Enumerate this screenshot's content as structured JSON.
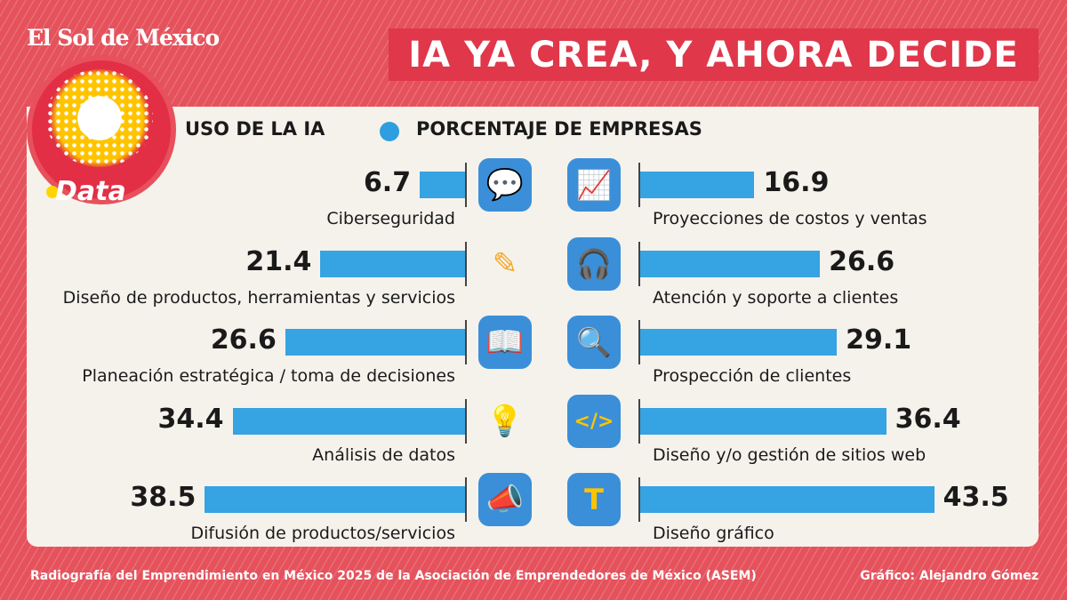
{
  "brand": "El Sol de México",
  "brand_section": "Data",
  "title": "IA YA CREA, Y AHORA DECIDE",
  "legend": {
    "category_label": "USO DE LA IA",
    "series_label": "PORCENTAJE DE EMPRESAS"
  },
  "colors": {
    "bar": "#36a3e2",
    "background": "#e5525c",
    "title_bg": "#e0374a"
  },
  "chart_data": {
    "type": "bar",
    "title": "IA YA CREA, Y AHORA DECIDE",
    "xlabel": "USO DE LA IA",
    "ylabel": "PORCENTAJE DE EMPRESAS",
    "left": [
      {
        "category": "Ciberseguridad",
        "value": 6.7,
        "icon": "chat-chip-icon"
      },
      {
        "category": "Diseño de productos, herramientas y servicios",
        "value": 21.4,
        "icon": "pencil-icon"
      },
      {
        "category": "Planeación estratégica / toma de decisiones",
        "value": 26.6,
        "icon": "book-chart-icon"
      },
      {
        "category": "Análisis de datos",
        "value": 34.4,
        "icon": "lightbulb-icon"
      },
      {
        "category": "Difusión de productos/servicios",
        "value": 38.5,
        "icon": "megaphone-icon"
      }
    ],
    "right": [
      {
        "category": "Proyecciones de costos y ventas",
        "value": 16.9,
        "icon": "clipboard-chart-icon"
      },
      {
        "category": "Atención y soporte a clientes",
        "value": 26.6,
        "icon": "headset-icon"
      },
      {
        "category": "Prospección de clientes",
        "value": 29.1,
        "icon": "magnifier-eye-icon"
      },
      {
        "category": "Diseño y/o gestión de sitios web",
        "value": 36.4,
        "icon": "web-code-icon"
      },
      {
        "category": "Diseño gráfico",
        "value": 43.5,
        "icon": "typography-brush-icon"
      }
    ]
  },
  "footer": {
    "source": "Radiografía del Emprendimiento en México 2025 de la Asociación de Emprendedores de México (ASEM)",
    "credit": "Gráfico: Alejandro Gómez"
  }
}
